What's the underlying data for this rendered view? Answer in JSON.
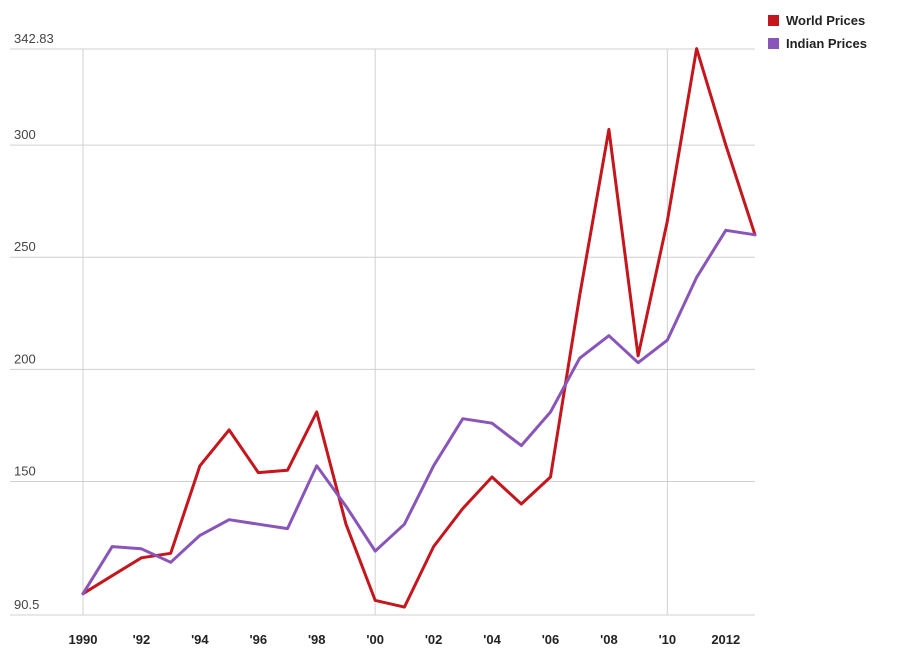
{
  "chart_data": {
    "type": "line",
    "title": "",
    "xlabel": "",
    "ylabel": "",
    "x": [
      1990,
      1991,
      1992,
      1993,
      1994,
      1995,
      1996,
      1997,
      1998,
      1999,
      2000,
      2001,
      2002,
      2003,
      2004,
      2005,
      2006,
      2007,
      2008,
      2009,
      2010,
      2011,
      2012,
      2013
    ],
    "x_tick_labels": [
      {
        "x": 1990,
        "label": "1990"
      },
      {
        "x": 1992,
        "label": "'92"
      },
      {
        "x": 1994,
        "label": "'94"
      },
      {
        "x": 1996,
        "label": "'96"
      },
      {
        "x": 1998,
        "label": "'98"
      },
      {
        "x": 2000,
        "label": "'00"
      },
      {
        "x": 2002,
        "label": "'02"
      },
      {
        "x": 2004,
        "label": "'04"
      },
      {
        "x": 2006,
        "label": "'06"
      },
      {
        "x": 2008,
        "label": "'08"
      },
      {
        "x": 2010,
        "label": "'10"
      },
      {
        "x": 2012,
        "label": "2012"
      }
    ],
    "ylim": [
      90.5,
      342.83
    ],
    "y_ticks": [
      {
        "value": 90.5,
        "label": "90.5"
      },
      {
        "value": 150,
        "label": "150"
      },
      {
        "value": 200,
        "label": "200"
      },
      {
        "value": 250,
        "label": "250"
      },
      {
        "value": 300,
        "label": "300"
      },
      {
        "value": 342.83,
        "label": "342.83"
      }
    ],
    "grid": true,
    "legend_position": "top-right",
    "series": [
      {
        "name": "World Prices",
        "color": "#c4161c",
        "values": [
          100,
          108,
          116,
          118,
          157,
          173,
          154,
          155,
          181,
          131,
          97,
          94,
          121,
          138,
          152,
          140,
          152,
          233,
          307,
          206,
          266,
          343,
          300,
          260
        ]
      },
      {
        "name": "Indian Prices",
        "color": "#8a55b8",
        "values": [
          100,
          121,
          120,
          114,
          126,
          133,
          131,
          129,
          157,
          139,
          119,
          131,
          157,
          178,
          176,
          166,
          181,
          205,
          215,
          203,
          213,
          241,
          262,
          260
        ]
      }
    ]
  }
}
